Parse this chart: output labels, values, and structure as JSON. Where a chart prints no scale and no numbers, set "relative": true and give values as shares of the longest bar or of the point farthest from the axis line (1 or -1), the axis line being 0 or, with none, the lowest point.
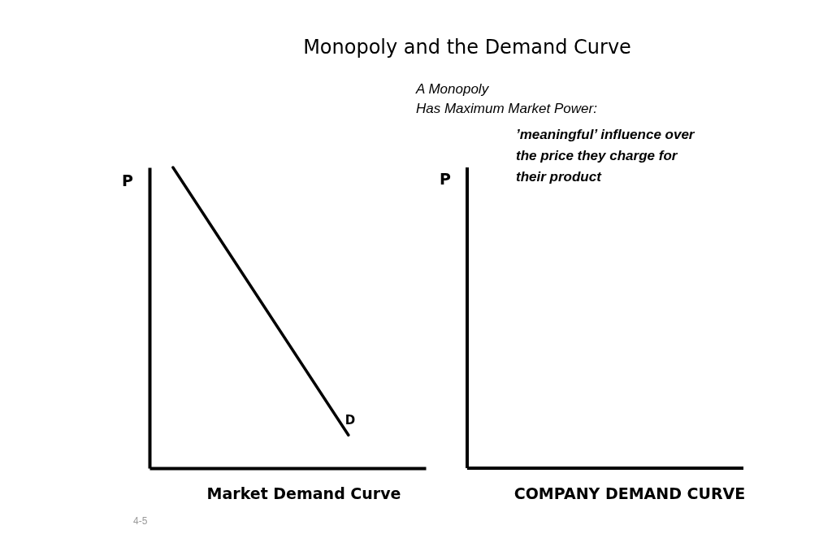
{
  "chart_data": [
    {
      "type": "line",
      "ylabel": "P",
      "xlabel": "Market Demand Curve",
      "relative": true,
      "categories": [
        null,
        null
      ],
      "grid": false,
      "marker": "none",
      "line_style": "solid",
      "series": [
        {
          "color": "#000000",
          "values": [
            1,
            0.11
          ]
        }
      ],
      "annotations": [
        "D",
        "4-5"
      ]
    },
    {
      "type": "other",
      "title": "Monopoly and the Demand Curve",
      "ylabel": "P",
      "xlabel": "COMPANY DEMAND CURVE",
      "annotations": [
        "A Monopoly",
        "Has Maximum Market Power:",
        "’meaningful’ influence over the price they charge for their product"
      ]
    }
  ]
}
